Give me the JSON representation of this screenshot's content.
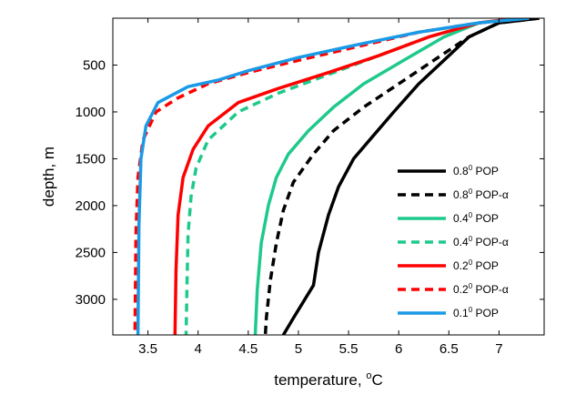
{
  "chart_data": {
    "type": "line",
    "title": "",
    "xlabel": "temperature, ",
    "xlabel_unit_sup": "o",
    "xlabel_unit": "C",
    "ylabel": "depth, m",
    "xlim": [
      3.15,
      7.45
    ],
    "ylim": [
      0,
      3380
    ],
    "y_reversed": true,
    "grid": false,
    "legend_position": "right",
    "xticks": [
      3.5,
      4,
      4.5,
      5,
      5.5,
      6,
      6.5,
      7
    ],
    "xtick_labels": [
      "3.5",
      "4",
      "4.5",
      "5",
      "5.5",
      "6",
      "6.5",
      "7"
    ],
    "yticks": [
      500,
      1000,
      1500,
      2000,
      2500,
      3000
    ],
    "ytick_labels": [
      "500",
      "1000",
      "1500",
      "2000",
      "2500",
      "3000"
    ],
    "series": [
      {
        "name": "0.8 POP",
        "label_prefix": "0.8",
        "label_sup": "0",
        "label_suffix": " POP",
        "color": "#000000",
        "dash": "solid",
        "x": [
          7.4,
          7.0,
          6.7,
          6.45,
          6.2,
          5.95,
          5.75,
          5.55,
          5.4,
          5.3,
          5.2,
          5.15,
          4.95,
          4.85
        ],
        "y": [
          0,
          50,
          200,
          450,
          700,
          1000,
          1250,
          1500,
          1800,
          2100,
          2500,
          2850,
          3200,
          3380
        ]
      },
      {
        "name": "0.8 POP-α",
        "label_prefix": "0.8",
        "label_sup": "0",
        "label_suffix": " POP-α",
        "color": "#000000",
        "dash": "dashed",
        "x": [
          7.4,
          7.0,
          6.7,
          6.35,
          6.0,
          5.65,
          5.35,
          5.15,
          4.95,
          4.85,
          4.78,
          4.72,
          4.68,
          4.67
        ],
        "y": [
          0,
          50,
          200,
          450,
          700,
          950,
          1200,
          1450,
          1750,
          2050,
          2400,
          2800,
          3200,
          3380
        ]
      },
      {
        "name": "0.4 POP",
        "label_prefix": "0.4",
        "label_sup": "0",
        "label_suffix": " POP",
        "color": "#1ec98b",
        "dash": "solid",
        "x": [
          7.2,
          6.8,
          6.45,
          6.05,
          5.65,
          5.35,
          5.1,
          4.9,
          4.78,
          4.7,
          4.63,
          4.59,
          4.57
        ],
        "y": [
          0,
          50,
          200,
          450,
          700,
          950,
          1200,
          1450,
          1700,
          2000,
          2400,
          2900,
          3380
        ]
      },
      {
        "name": "0.4 POP-α",
        "label_prefix": "0.4",
        "label_sup": "0",
        "label_suffix": " POP-α",
        "color": "#1ec98b",
        "dash": "dashed",
        "x": [
          7.2,
          6.8,
          6.3,
          5.8,
          5.3,
          4.8,
          4.4,
          4.1,
          3.98,
          3.93,
          3.9,
          3.89,
          3.88
        ],
        "y": [
          0,
          50,
          200,
          400,
          600,
          800,
          1000,
          1300,
          1600,
          1900,
          2300,
          2800,
          3380
        ]
      },
      {
        "name": "0.2 POP",
        "label_prefix": "0.2",
        "label_sup": "0",
        "label_suffix": " POP",
        "color": "#ff0000",
        "dash": "solid",
        "x": [
          7.2,
          6.8,
          6.3,
          5.8,
          5.3,
          4.8,
          4.4,
          4.1,
          3.95,
          3.85,
          3.8,
          3.78,
          3.77
        ],
        "y": [
          0,
          50,
          200,
          400,
          580,
          750,
          900,
          1150,
          1400,
          1700,
          2100,
          2700,
          3380
        ]
      },
      {
        "name": "0.2 POP-α",
        "label_prefix": "0.2",
        "label_sup": "0",
        "label_suffix": " POP-α",
        "color": "#ff0000",
        "dash": "dashed",
        "x": [
          7.3,
          6.8,
          6.2,
          5.6,
          5.0,
          4.5,
          4.1,
          3.8,
          3.58,
          3.45,
          3.4,
          3.38,
          3.37
        ],
        "y": [
          0,
          50,
          150,
          300,
          450,
          580,
          700,
          850,
          1000,
          1300,
          1700,
          2300,
          3380
        ]
      },
      {
        "name": "0.1 POP",
        "label_prefix": "0.1",
        "label_sup": "0",
        "label_suffix": " POP",
        "color": "#1a9ae6",
        "dash": "solid",
        "x": [
          7.3,
          6.8,
          6.2,
          5.6,
          5.0,
          4.5,
          4.2,
          3.9,
          3.6,
          3.48,
          3.43,
          3.41,
          3.4
        ],
        "y": [
          0,
          50,
          150,
          280,
          420,
          560,
          660,
          730,
          900,
          1150,
          1500,
          2200,
          3380
        ]
      }
    ]
  }
}
